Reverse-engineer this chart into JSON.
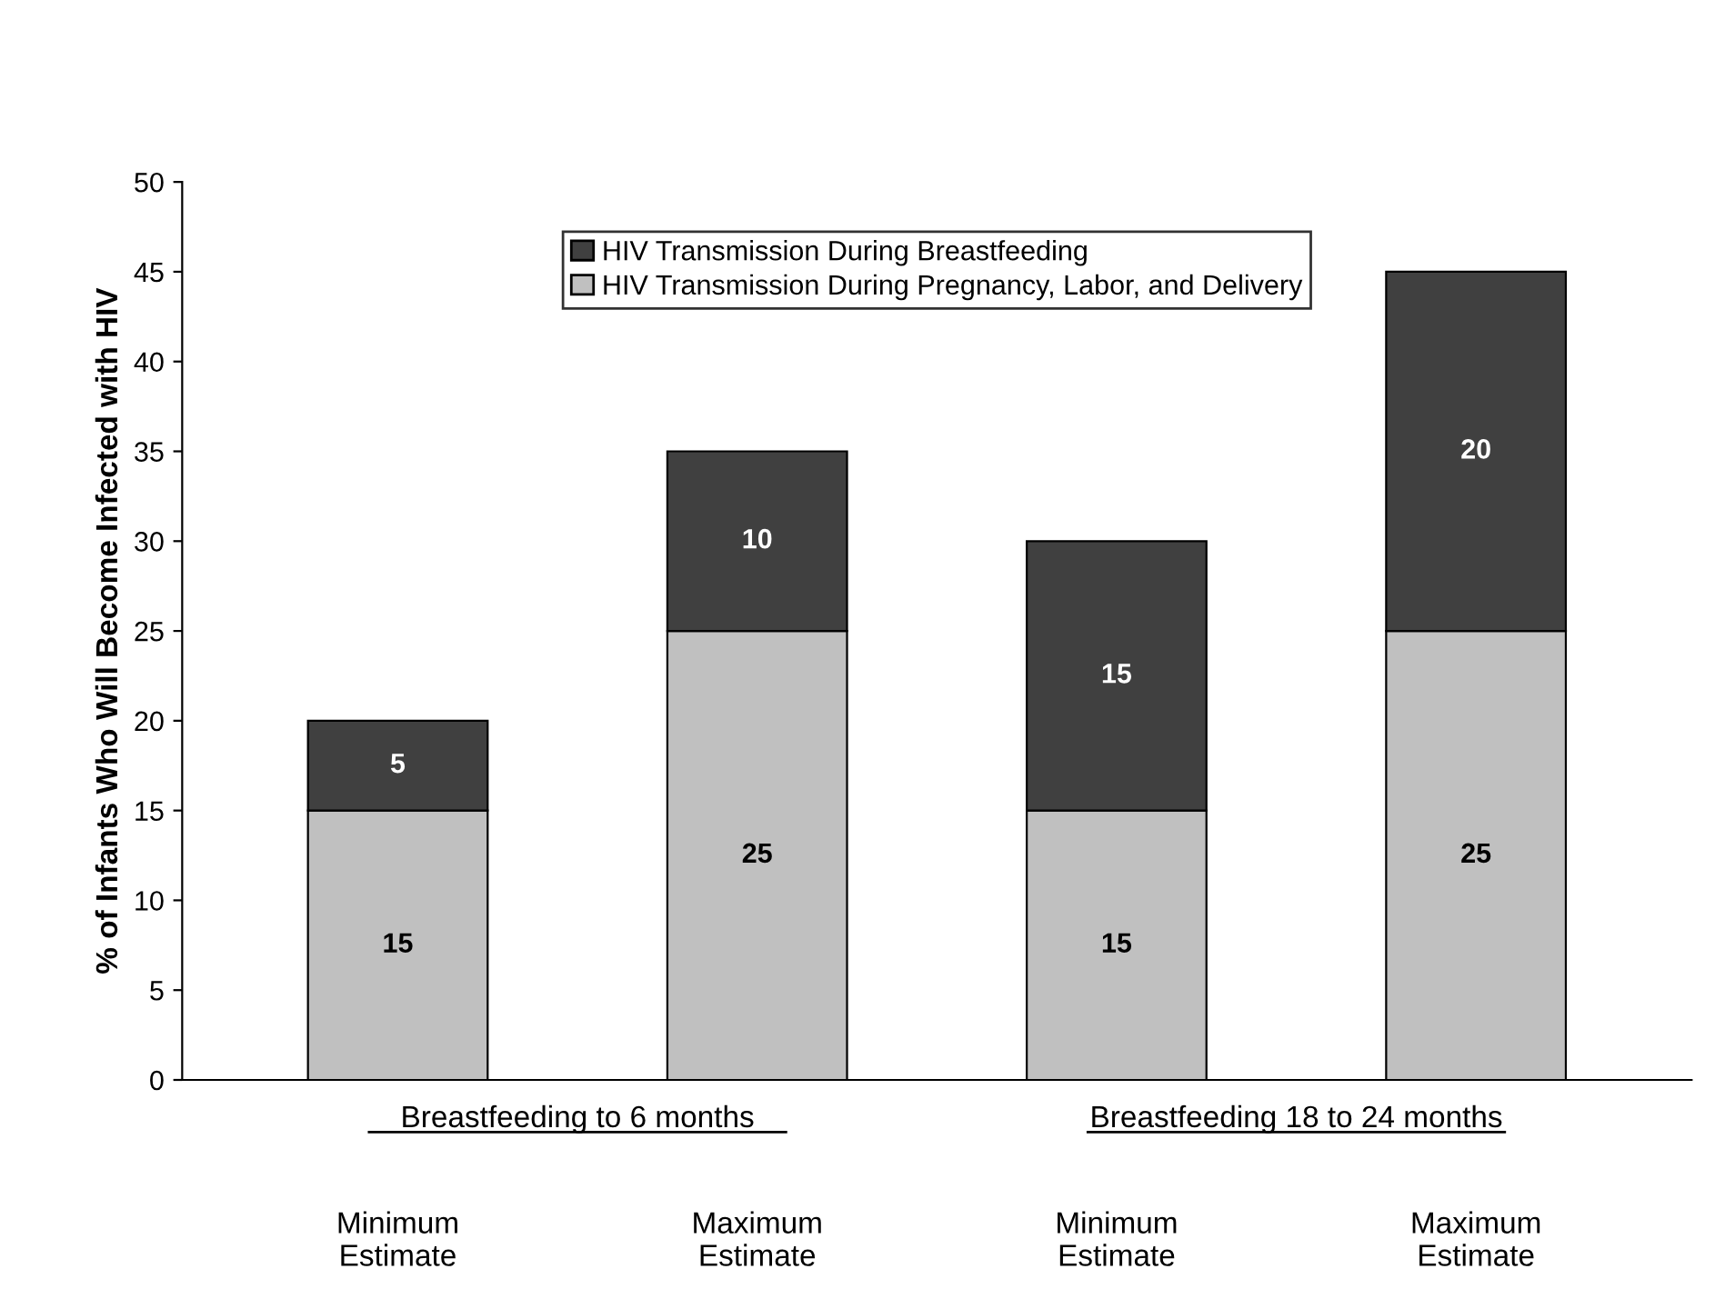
{
  "chart_data": {
    "type": "bar",
    "stacked": true,
    "ylabel": "% of Infants Who Will Become Infected with HIV",
    "categories": [
      "Minimum\nEstimate",
      "Maximum\nEstimate",
      "Minimum\nEstimate",
      "Maximum\nEstimate"
    ],
    "series": [
      {
        "name": "HIV Transmission During Pregnancy, Labor, and Delivery",
        "color": "#c0c0c0",
        "values": [
          15,
          25,
          15,
          25
        ]
      },
      {
        "name": "HIV Transmission During Breastfeeding",
        "color": "#404040",
        "values": [
          5,
          10,
          15,
          20
        ]
      }
    ],
    "annotations": [
      "Breastfeeding to 6 months",
      "Breastfeeding 18 to 24 months"
    ],
    "ylim": [
      0,
      50
    ],
    "yticks": [
      0,
      5,
      10,
      15,
      20,
      25,
      30,
      35,
      40,
      45,
      50
    ],
    "data_labels": true,
    "legend": "top",
    "grid": false
  }
}
